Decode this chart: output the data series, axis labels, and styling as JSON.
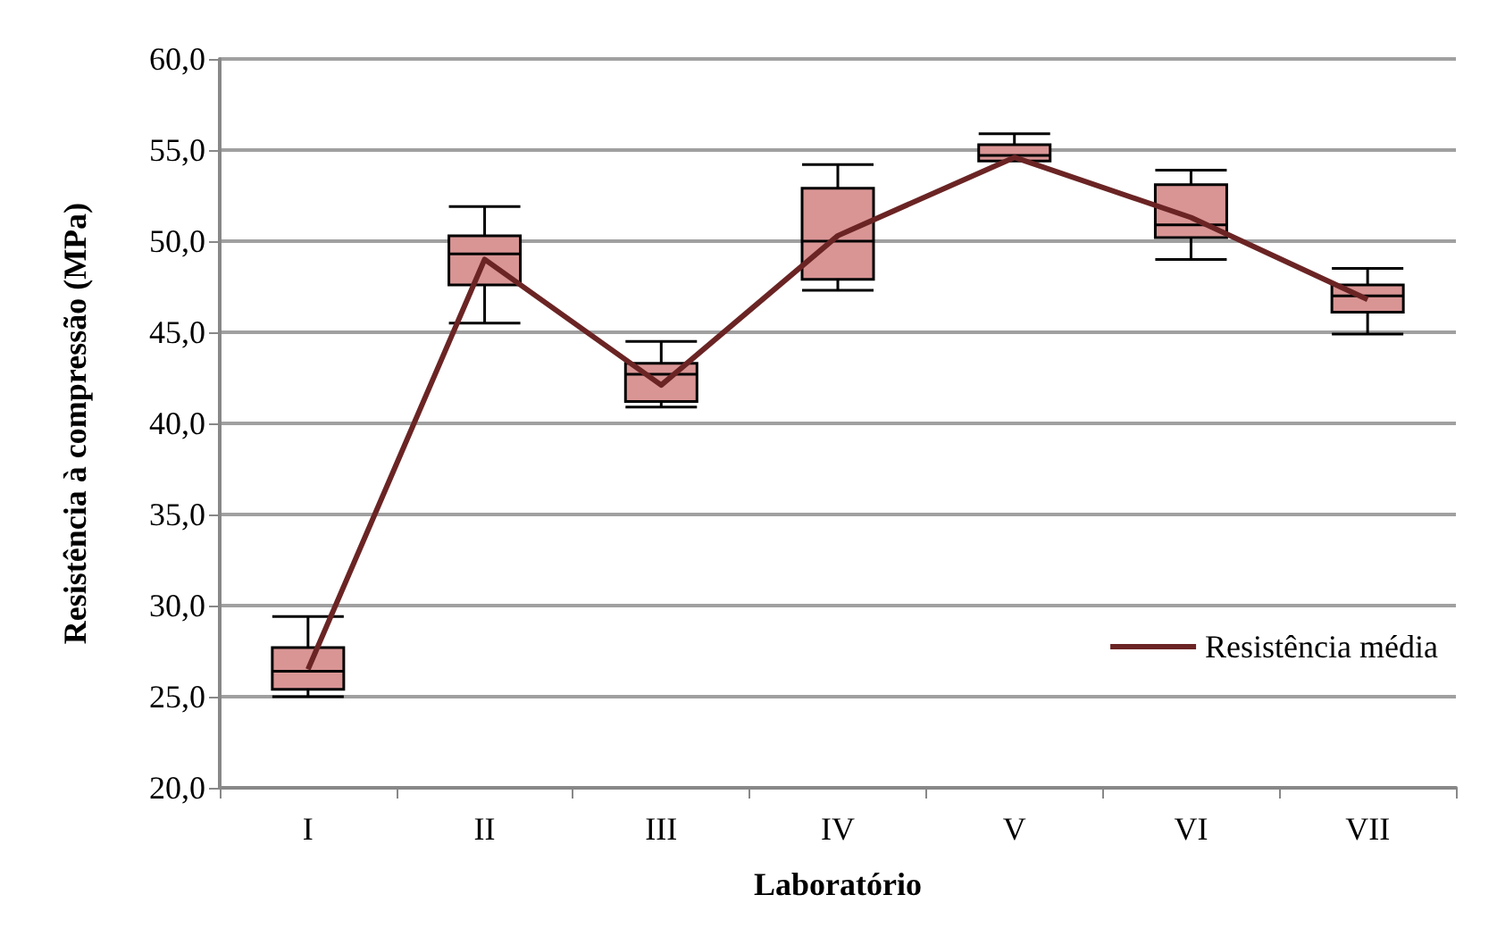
{
  "chart_data": {
    "type": "box",
    "xlabel": "Laboratório",
    "ylabel": "Resistência à compressão (MPa)",
    "categories": [
      "I",
      "II",
      "III",
      "IV",
      "V",
      "VI",
      "VII"
    ],
    "ylim": [
      20,
      60
    ],
    "yticks": [
      {
        "value": 20,
        "label": "20,0"
      },
      {
        "value": 25,
        "label": "25,0"
      },
      {
        "value": 30,
        "label": "30,0"
      },
      {
        "value": 35,
        "label": "35,0"
      },
      {
        "value": 40,
        "label": "40,0"
      },
      {
        "value": 45,
        "label": "45,0"
      },
      {
        "value": 50,
        "label": "50,0"
      },
      {
        "value": 55,
        "label": "55,0"
      },
      {
        "value": 60,
        "label": "60,0"
      }
    ],
    "grid": "y",
    "legend": "right",
    "series": [
      {
        "color": "#d99594",
        "boxes": [
          {
            "low": 25.0,
            "q1": 25.4,
            "median": 26.4,
            "q3": 27.7,
            "high": 29.4
          },
          {
            "low": 45.5,
            "q1": 47.6,
            "median": 49.3,
            "q3": 50.3,
            "high": 51.9
          },
          {
            "low": 40.9,
            "q1": 41.2,
            "median": 42.7,
            "q3": 43.3,
            "high": 44.5
          },
          {
            "low": 47.3,
            "q1": 47.9,
            "median": 50.0,
            "q3": 52.9,
            "high": 54.2
          },
          {
            "low": 54.4,
            "q1": 54.4,
            "median": 54.7,
            "q3": 55.3,
            "high": 55.9
          },
          {
            "low": 49.0,
            "q1": 50.2,
            "median": 50.9,
            "q3": 53.1,
            "high": 53.9
          },
          {
            "low": 44.9,
            "q1": 46.1,
            "median": 47.0,
            "q3": 47.6,
            "high": 48.5
          }
        ]
      },
      {
        "type": "line",
        "name": "Resistência média",
        "color": "#6b2424",
        "marker": "none",
        "line_style": "solid",
        "values": [
          26.5,
          49.0,
          42.1,
          50.3,
          54.6,
          51.3,
          46.8
        ]
      }
    ]
  }
}
